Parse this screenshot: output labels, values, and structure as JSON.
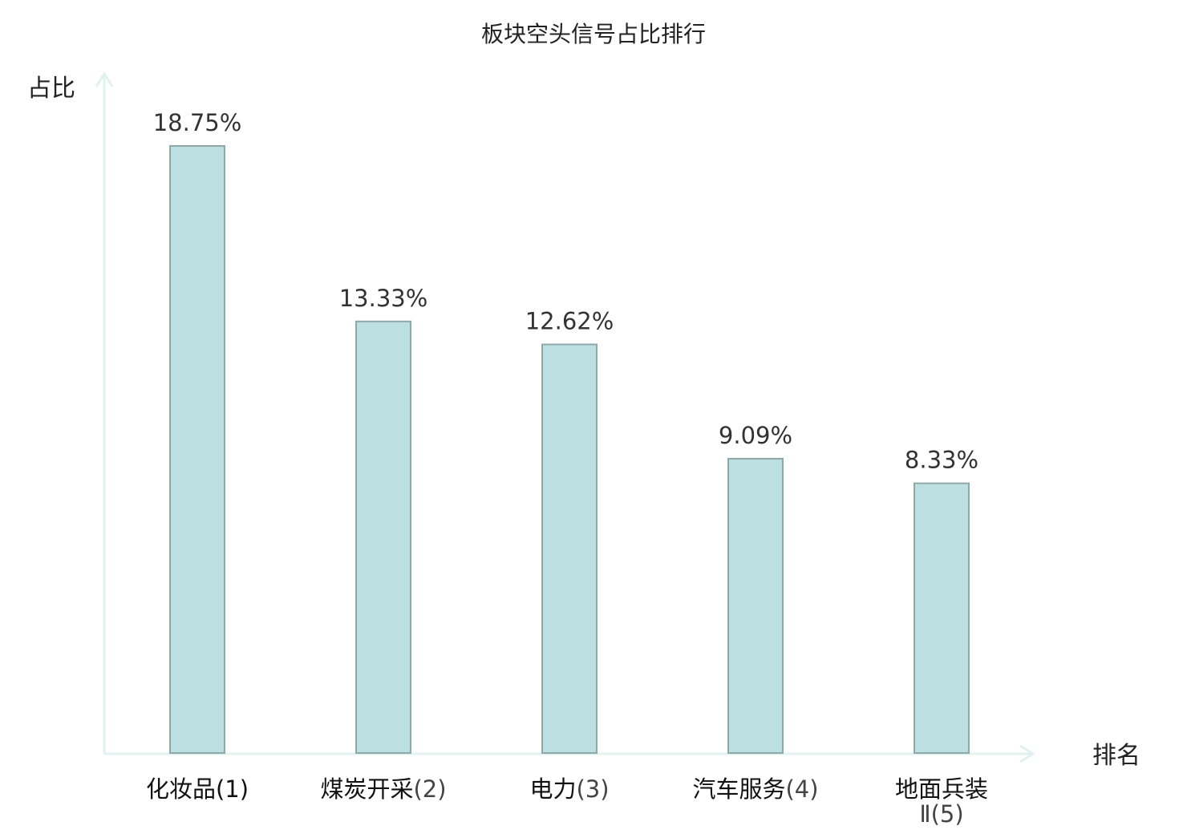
{
  "chart_data": {
    "type": "bar",
    "title": "板块空头信号占比排行",
    "ylabel": "占比",
    "xlabel": "排名",
    "categories": [
      {
        "name": "化妆品",
        "name_line2": "",
        "rank": "(1)",
        "highlight": true
      },
      {
        "name": "煤炭开采",
        "name_line2": "",
        "rank": "(2)",
        "highlight": false
      },
      {
        "name": "电力",
        "name_line2": "",
        "rank": "(3)",
        "highlight": false
      },
      {
        "name": "汽车服务",
        "name_line2": "",
        "rank": "(4)",
        "highlight": false
      },
      {
        "name": "地面兵装",
        "name_line2": "Ⅱ",
        "rank": "(5)",
        "highlight": false
      }
    ],
    "values": [
      18.75,
      13.33,
      12.62,
      9.09,
      8.33
    ],
    "value_labels": [
      "18.75%",
      "13.33%",
      "12.62%",
      "9.09%",
      "8.33%"
    ],
    "ylim": [
      0,
      20
    ],
    "grid": false,
    "legend": "none",
    "colors": {
      "bar_fill": "#bce0e1",
      "bar_stroke": "#8fa8a9",
      "axis": "#dff2ee",
      "highlight_text": "#d42a2a",
      "text": "#222222"
    }
  }
}
